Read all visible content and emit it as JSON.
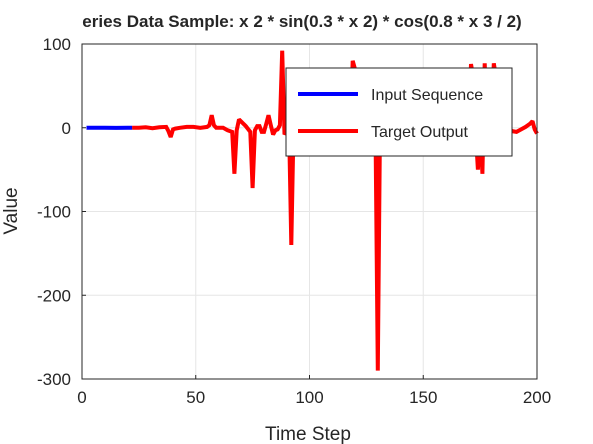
{
  "chart_data": {
    "type": "line",
    "title": "eries Data Sample: x  2 * sin(0.3 * x  2) * cos(0.8 * x  3 / 2)",
    "xlabel": "Time Step",
    "ylabel": "Value",
    "xlim": [
      0,
      200
    ],
    "ylim": [
      -300,
      100
    ],
    "xticks": [
      "0",
      "50",
      "100",
      "150",
      "200"
    ],
    "yticks": [
      "100",
      "0",
      "-100",
      "-200",
      "-300"
    ],
    "grid": true,
    "legend_position": "top-right",
    "series": [
      {
        "name": "Input Sequence",
        "color": "#0000ff",
        "x": [
          2,
          5,
          10,
          15,
          20,
          22
        ],
        "y": [
          0,
          0,
          0.1,
          -0.2,
          0,
          0
        ]
      },
      {
        "name": "Target Output",
        "color": "#ff0000",
        "x": [
          22,
          25,
          28,
          31,
          34,
          37,
          38,
          39,
          40,
          41,
          43,
          46,
          49,
          52,
          55,
          56,
          57,
          58,
          59,
          62,
          64,
          66,
          67,
          68,
          69,
          72,
          74,
          75,
          76,
          77,
          78,
          79,
          80,
          81,
          82,
          83,
          84,
          85,
          86,
          87,
          88,
          89,
          90,
          91,
          92,
          93,
          94,
          96,
          98,
          100,
          102,
          104,
          106,
          108,
          110,
          112,
          114,
          116,
          118,
          119,
          120,
          121,
          122,
          124,
          126,
          128,
          129,
          130,
          131,
          132,
          134,
          136,
          138,
          140,
          142,
          144,
          146,
          148,
          150,
          152,
          154,
          156,
          158,
          160,
          162,
          164,
          166,
          168,
          170,
          171,
          172,
          173,
          174,
          175,
          176,
          177,
          178,
          179,
          180,
          181,
          182,
          183,
          185,
          187,
          189,
          191,
          193,
          195,
          197,
          198,
          199,
          200
        ],
        "y": [
          0,
          0,
          0.5,
          -0.5,
          0.5,
          1,
          -4,
          -11,
          -2,
          -1,
          0,
          1,
          1,
          0,
          1,
          3,
          15,
          3,
          0,
          0,
          -3,
          -5,
          -55,
          -3,
          10,
          2,
          -5,
          -72,
          -3,
          2,
          2,
          -5,
          -5,
          5,
          15,
          3,
          -8,
          -3,
          -2,
          3,
          92,
          -8,
          -4,
          5,
          -140,
          5,
          3,
          2,
          0,
          -2,
          3,
          -4,
          2,
          5,
          -3,
          3,
          -2,
          5,
          3,
          80,
          70,
          4,
          -2,
          3,
          -3,
          5,
          -3,
          -290,
          2,
          5,
          5,
          -3,
          2,
          3,
          -4,
          3,
          2,
          5,
          -2,
          3,
          2,
          3,
          -3,
          -5,
          3,
          3,
          3,
          2,
          3,
          76,
          60,
          -3,
          -50,
          5,
          -55,
          77,
          3,
          -5,
          3,
          77,
          60,
          -4,
          -3,
          2,
          -4,
          -5,
          -2,
          1,
          5,
          8,
          -2,
          -7
        ]
      }
    ]
  }
}
